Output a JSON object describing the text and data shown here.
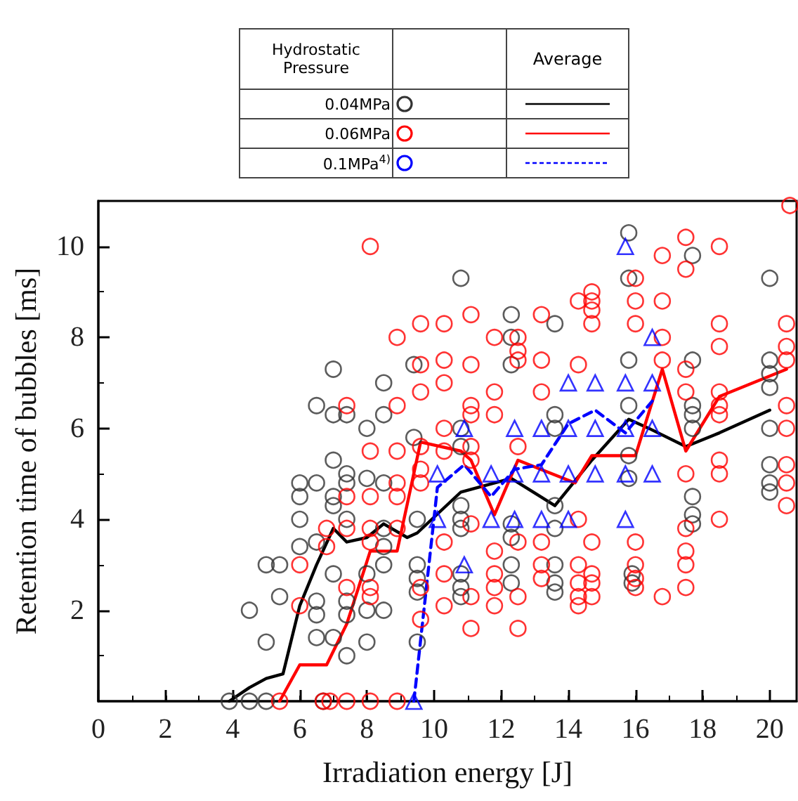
{
  "chart_data": {
    "type": "scatter",
    "xlabel": "Irradiation energy [J]",
    "ylabel": "Retention time of bubbles [ms]",
    "legend_title": "Hydrostatic Pressure",
    "annotations": [
      "Average"
    ],
    "legend": "top",
    "xlim": [
      0,
      20.8
    ],
    "xticks": [
      0,
      2,
      4,
      6,
      8,
      10,
      12,
      14,
      16,
      18,
      20
    ],
    "ylim": [
      0,
      11
    ],
    "yticks": [
      2,
      4,
      6,
      8,
      10
    ],
    "series": [
      {
        "name": "0.04MPa",
        "color": "#333333",
        "marker": "circle",
        "x": [
          3.9,
          4.5,
          5.0,
          6.7,
          4.5,
          5.0,
          5.0,
          5.4,
          5.4,
          6.0,
          6.0,
          6.0,
          6.0,
          6.5,
          6.5,
          7.0,
          7.0,
          7.4,
          7.0,
          7.4,
          7.4,
          7.0,
          7.0,
          8.0,
          8.0,
          8.5,
          8.5,
          8.5,
          6.5,
          7.0,
          6.5,
          6.5,
          6.5,
          7.0,
          7.4,
          7.4,
          7.4,
          8.0,
          8.0,
          8.5,
          8.5,
          8.5,
          7.4,
          8.0,
          8.5,
          10.8,
          9.4,
          9.4,
          10.8,
          10.8,
          12.3,
          12.3,
          12.3,
          13.6,
          13.6,
          13.6,
          13.6,
          15.8,
          15.8,
          15.8,
          15.8,
          15.8,
          15.8,
          17.7,
          17.7,
          17.7,
          17.7,
          17.7,
          20.0,
          20.0,
          20.0,
          20.0,
          20.0,
          20.0,
          20.0,
          20.0,
          9.5,
          9.5,
          9.5,
          9.5,
          9.5,
          10.8,
          10.8,
          10.8,
          10.8,
          10.8,
          10.8,
          12.3,
          12.3,
          12.3,
          12.3,
          13.6,
          13.6,
          13.6,
          13.6,
          15.9,
          15.9,
          17.7,
          17.7,
          17.7
        ],
        "values": [
          0,
          0,
          0,
          0,
          2.0,
          1.3,
          3.0,
          3.0,
          2.3,
          3.4,
          4.0,
          4.5,
          4.8,
          4.8,
          6.5,
          7.3,
          6.3,
          6.3,
          5.3,
          5.0,
          4.8,
          4.5,
          4.3,
          6.0,
          4.9,
          7.0,
          6.3,
          4.8,
          3.5,
          2.8,
          2.2,
          1.9,
          1.4,
          1.4,
          1.0,
          2.2,
          1.9,
          1.3,
          2.0,
          2.0,
          3.0,
          3.4,
          4.0,
          2.8,
          3.8,
          9.3,
          7.4,
          5.8,
          6.0,
          5.6,
          8.5,
          8.0,
          7.4,
          8.3,
          6.3,
          6.0,
          4.3,
          10.3,
          9.3,
          7.5,
          6.5,
          5.4,
          4.9,
          9.8,
          7.5,
          6.5,
          6.3,
          6.0,
          9.3,
          7.5,
          7.2,
          6.9,
          6.0,
          5.2,
          4.8,
          4.6,
          4.0,
          3.0,
          2.7,
          2.4,
          1.3,
          4.3,
          4.0,
          3.8,
          2.8,
          2.5,
          2.3,
          3.9,
          3.6,
          3.0,
          2.6,
          3.8,
          3.0,
          2.6,
          2.4,
          2.8,
          2.6,
          4.5,
          4.1,
          3.9
        ]
      },
      {
        "name": "0.06MPa",
        "color": "#ff0000",
        "marker": "circle",
        "x": [
          5.4,
          6.7,
          6.9,
          7.4,
          8.1,
          8.9,
          6.0,
          6.0,
          6.8,
          6.8,
          7.4,
          8.1,
          8.9,
          8.1,
          7.4,
          8.1,
          8.1,
          7.4,
          8.1,
          8.9,
          8.9,
          8.1,
          8.9,
          7.4,
          8.9,
          8.1,
          8.9,
          9.6,
          10.3,
          11.1,
          13.2,
          14.3,
          14.7,
          14.7,
          14.7,
          14.7,
          16.0,
          16.0,
          16.0,
          16.8,
          16.8,
          17.5,
          17.5,
          18.5,
          18.5,
          18.5,
          20.5,
          20.5,
          20.5,
          20.6,
          11.8,
          12.5,
          12.5,
          12.5,
          13.2,
          14.3,
          9.6,
          10.3,
          11.1,
          9.6,
          10.3,
          11.8,
          13.2,
          16.8,
          16.8,
          17.5,
          17.5,
          18.5,
          18.5,
          18.5,
          20.5,
          20.5,
          11.1,
          11.1,
          11.8,
          10.3,
          9.6,
          10.3,
          11.1,
          11.1,
          12.5,
          9.6,
          9.6,
          17.5,
          18.5,
          18.5,
          20.5,
          20.5,
          20.5,
          14.3,
          18.5,
          17.5,
          11.1,
          10.3,
          11.8,
          12.5,
          13.2,
          14.7,
          16.0,
          17.5,
          17.5,
          13.2,
          13.2,
          14.3,
          14.7,
          14.7,
          14.7,
          14.3,
          14.3,
          14.3,
          16.0,
          16.0,
          16.0,
          16.8,
          17.5,
          11.8,
          11.8,
          12.5,
          11.8,
          10.3,
          10.3,
          11.1,
          11.1,
          12.5,
          9.6,
          9.6
        ],
        "values": [
          0,
          0,
          0,
          0,
          0,
          0,
          3.0,
          2.1,
          3.8,
          3.4,
          3.8,
          3.8,
          3.8,
          3.5,
          2.5,
          2.5,
          2.3,
          4.5,
          4.5,
          4.5,
          4.8,
          10.0,
          8.0,
          6.5,
          6.5,
          5.5,
          5.5,
          8.3,
          8.3,
          8.5,
          8.5,
          8.8,
          9.0,
          8.8,
          8.6,
          8.3,
          9.3,
          8.8,
          8.3,
          9.8,
          8.8,
          10.2,
          9.5,
          10.0,
          8.3,
          7.8,
          8.3,
          7.8,
          7.5,
          10.9,
          8.0,
          8.0,
          7.7,
          7.5,
          7.5,
          7.4,
          7.4,
          7.5,
          7.4,
          6.8,
          7.0,
          6.8,
          6.8,
          7.5,
          8.0,
          7.3,
          6.8,
          6.8,
          6.5,
          6.3,
          6.5,
          6.0,
          6.5,
          6.3,
          6.3,
          6.0,
          5.6,
          5.5,
          5.6,
          5.3,
          5.6,
          5.1,
          4.8,
          5.0,
          5.3,
          5.0,
          5.2,
          4.8,
          4.3,
          4.0,
          4.0,
          3.8,
          3.9,
          3.5,
          3.3,
          3.5,
          3.5,
          3.5,
          3.5,
          3.3,
          3.0,
          3.0,
          2.7,
          3.0,
          2.8,
          2.6,
          2.3,
          2.6,
          2.3,
          2.1,
          3.0,
          2.7,
          2.5,
          2.3,
          2.5,
          2.8,
          2.5,
          2.3,
          2.1,
          2.8,
          2.1,
          2.3,
          1.6,
          1.6,
          2.5,
          1.8
        ]
      },
      {
        "name": "0.1MPa$^{4)}$",
        "color": "#0000ff",
        "marker": "triangle",
        "x": [
          9.4,
          10.1,
          10.9,
          11.7,
          12.4,
          13.2,
          14.0,
          15.7,
          10.1,
          10.9,
          11.7,
          12.4,
          13.2,
          14.0,
          14.8,
          15.7,
          16.5,
          12.4,
          13.2,
          14.0,
          14.8,
          15.7,
          16.5,
          14.0,
          14.8,
          15.7,
          16.5,
          16.5,
          15.7
        ],
        "values": [
          0,
          4,
          3,
          4,
          4,
          4,
          4,
          4,
          5,
          6,
          5,
          5,
          5,
          5,
          5,
          5,
          5,
          6,
          6,
          6,
          6,
          6,
          6,
          7,
          7,
          7,
          7,
          8,
          10
        ]
      },
      {
        "type": "line",
        "color": "#000000",
        "marker": "none",
        "line_style": "solid",
        "x": [
          3.9,
          4.5,
          5.0,
          5.5,
          6.0,
          6.5,
          7.0,
          7.4,
          8.0,
          8.5,
          9.2,
          9.5,
          10.8,
          12.3,
          13.6,
          14.7,
          15.8,
          16.4,
          17.5,
          18.5,
          20.0
        ],
        "values": [
          0,
          0.3,
          0.5,
          0.6,
          2.1,
          3.0,
          3.8,
          3.5,
          3.6,
          3.9,
          3.6,
          3.7,
          4.6,
          4.9,
          4.3,
          5.3,
          6.2,
          6.0,
          5.6,
          5.9,
          6.4
        ]
      },
      {
        "type": "line",
        "color": "#ff0000",
        "marker": "none",
        "line_style": "solid",
        "x": [
          5.4,
          6.0,
          6.8,
          7.4,
          8.1,
          8.9,
          9.6,
          10.8,
          11.1,
          11.8,
          12.5,
          14.2,
          14.7,
          16.0,
          16.8,
          17.5,
          18.5,
          20.5
        ],
        "values": [
          0,
          0.8,
          0.8,
          1.7,
          3.3,
          3.3,
          5.7,
          5.5,
          5.3,
          4.1,
          5.3,
          4.8,
          5.4,
          5.4,
          7.3,
          5.5,
          6.7,
          7.3
        ]
      },
      {
        "type": "line",
        "color": "#0000ff",
        "marker": "none",
        "line_style": "dashed",
        "x": [
          9.4,
          10.1,
          10.9,
          11.7,
          12.4,
          13.2,
          14.0,
          14.8,
          15.7,
          16.5
        ],
        "values": [
          0,
          4.7,
          5.2,
          4.5,
          5.1,
          5.2,
          6.1,
          6.4,
          5.9,
          6.6
        ]
      }
    ]
  }
}
